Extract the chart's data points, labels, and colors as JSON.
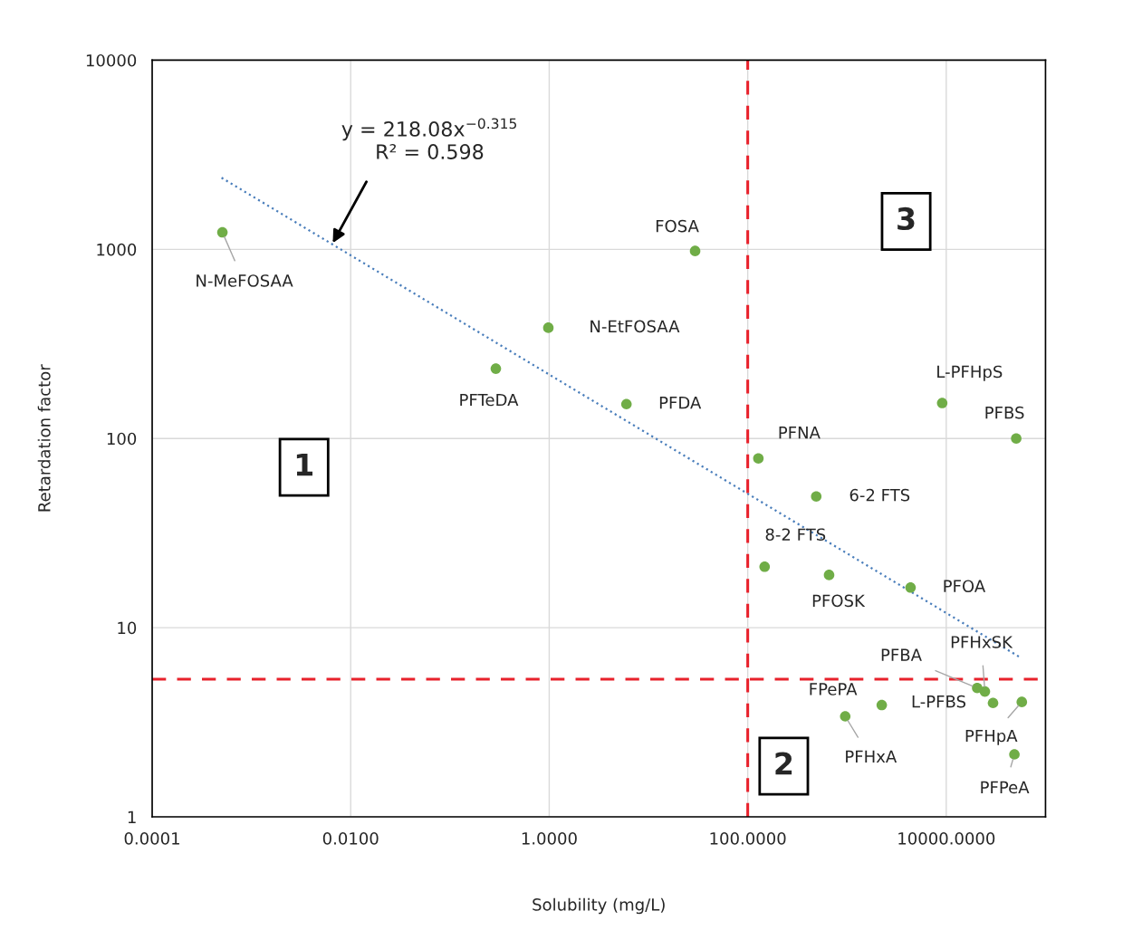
{
  "chart_data": {
    "type": "scatter",
    "xlabel": "Solubility (mg/L)",
    "ylabel": "Retardation factor",
    "log": "xy",
    "grid": true,
    "xlim": [
      0.0001,
      100000
    ],
    "ylim": [
      1,
      10000
    ],
    "xticks": [
      {
        "value": 0.0001,
        "label": "0.0001"
      },
      {
        "value": 0.01,
        "label": "0.0100"
      },
      {
        "value": 1,
        "label": "1.0000"
      },
      {
        "value": 100,
        "label": "100.0000"
      },
      {
        "value": 10000,
        "label": "10000.0000"
      }
    ],
    "yticks": [
      1,
      10,
      100,
      1000,
      10000
    ],
    "series": [
      {
        "color": "#70ad47",
        "marker": "circle",
        "x": [
          0.00051,
          29.5,
          0.98,
          0.29,
          6.0,
          128,
          490,
          148,
          660,
          4370,
          9100,
          50700,
          24500,
          20500,
          2240,
          29600,
          960,
          57700,
          48600
        ],
        "values": [
          1230,
          980,
          385,
          234,
          152,
          78.5,
          49.4,
          21,
          19,
          16.3,
          154,
          100,
          4.6,
          4.8,
          3.9,
          4.0,
          3.4,
          4.05,
          2.14
        ]
      },
      {
        "type": "line",
        "color": "#4a7ebb",
        "line_style": "dotted",
        "marker": "none",
        "x": [
          0.0005,
          56000
        ],
        "values": [
          2390,
          6.95
        ]
      }
    ],
    "ref_lines": [
      {
        "axis": "x",
        "value": 100,
        "color": "#e8212b",
        "line_style": "dashed"
      },
      {
        "axis": "y",
        "value": 5.34,
        "color": "#e8212b",
        "line_style": "dashed"
      }
    ],
    "annotations": [
      {
        "text": "N-MeFOSAA",
        "x": 0.00051,
        "y": 1230
      },
      {
        "text": "FOSA",
        "x": 29.5,
        "y": 980
      },
      {
        "text": "N-EtFOSAA",
        "x": 0.98,
        "y": 385
      },
      {
        "text": "PFTeDA",
        "x": 0.29,
        "y": 234
      },
      {
        "text": "PFDA",
        "x": 6.0,
        "y": 152
      },
      {
        "text": "PFNA",
        "x": 128,
        "y": 78.5
      },
      {
        "text": "6-2 FTS",
        "x": 490,
        "y": 49.4
      },
      {
        "text": "8-2 FTS",
        "x": 148,
        "y": 21
      },
      {
        "text": "PFOSK",
        "x": 660,
        "y": 19
      },
      {
        "text": "PFOA",
        "x": 4370,
        "y": 16.3
      },
      {
        "text": "L-PFHpS",
        "x": 9100,
        "y": 154
      },
      {
        "text": "PFBS",
        "x": 50700,
        "y": 100
      },
      {
        "text": "PFHxSK",
        "x": 24500,
        "y": 4.6
      },
      {
        "text": "PFBA",
        "x": 20500,
        "y": 4.8
      },
      {
        "text": "FPePA",
        "x": 2240,
        "y": 3.9
      },
      {
        "text": "L-PFBS",
        "x": 29600,
        "y": 4.0
      },
      {
        "text": "PFHxA",
        "x": 960,
        "y": 3.4
      },
      {
        "text": "PFHpA",
        "x": 57700,
        "y": 4.05
      },
      {
        "text": "PFPeA",
        "x": 48600,
        "y": 2.14
      },
      {
        "text": "y = 218.08x$^{−0.315}$\nR² = 0.598",
        "x": 0.0066,
        "y": 1080
      },
      "1",
      "2",
      "3"
    ]
  }
}
